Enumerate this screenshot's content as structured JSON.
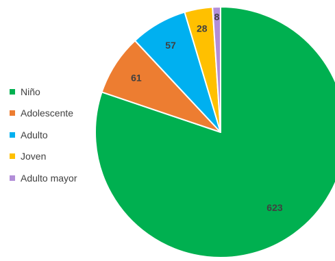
{
  "chart_data": {
    "type": "pie",
    "title": "",
    "categories": [
      "Niño",
      "Adolescente",
      "Adulto",
      "Joven",
      "Adulto mayor"
    ],
    "values": [
      623,
      61,
      57,
      28,
      8
    ],
    "colors": [
      "#00b050",
      "#ed7d31",
      "#00b0f0",
      "#ffc000",
      "#b28ed8"
    ],
    "data_labels": [
      "623",
      "61",
      "57",
      "28",
      "8"
    ],
    "legend_position": "left",
    "start_angle_deg": 0,
    "direction": "clockwise"
  }
}
